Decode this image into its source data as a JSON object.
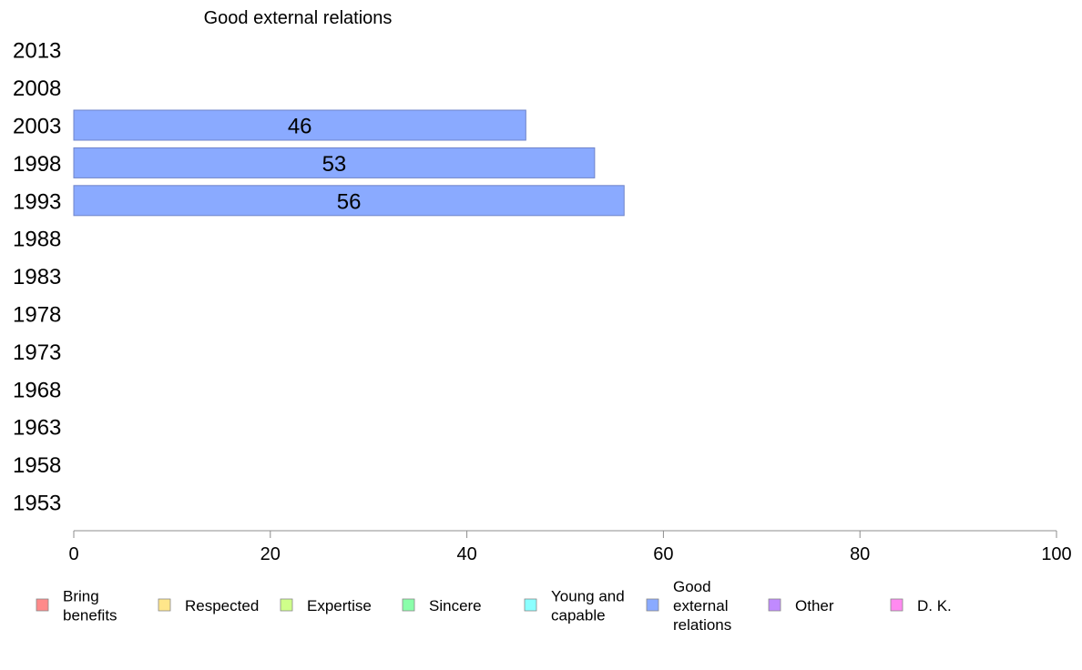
{
  "chart_data": {
    "type": "bar",
    "orientation": "horizontal",
    "title": "Good external relations",
    "categories": [
      "2013",
      "2008",
      "2003",
      "1998",
      "1993",
      "1988",
      "1983",
      "1978",
      "1973",
      "1968",
      "1963",
      "1958",
      "1953"
    ],
    "series": [
      {
        "name": "Good external relations",
        "values": [
          null,
          null,
          46,
          53,
          56,
          null,
          null,
          null,
          null,
          null,
          null,
          null,
          null
        ],
        "data_labels": [
          null,
          null,
          "46",
          "53",
          "56",
          null,
          null,
          null,
          null,
          null,
          null,
          null,
          null
        ],
        "color": "#8aaaff"
      }
    ],
    "xlim": [
      0,
      100
    ],
    "xticks": [
      "0",
      "20",
      "40",
      "60",
      "80",
      "100"
    ],
    "grid": false,
    "legend_position": "bottom",
    "legend": [
      {
        "lines": [
          "Bring",
          "benefits"
        ],
        "color": "#ff8a8a"
      },
      {
        "lines": [
          "Respected"
        ],
        "color": "#ffe68a"
      },
      {
        "lines": [
          "Expertise"
        ],
        "color": "#cfff8a"
      },
      {
        "lines": [
          "Sincere"
        ],
        "color": "#8affaa"
      },
      {
        "lines": [
          "Young and",
          "capable"
        ],
        "color": "#8affff"
      },
      {
        "lines": [
          "Good",
          "external",
          "relations"
        ],
        "color": "#8aaaff"
      },
      {
        "lines": [
          "Other"
        ],
        "color": "#c08aff"
      },
      {
        "lines": [
          "D. K."
        ],
        "color": "#ff8af0"
      }
    ]
  }
}
